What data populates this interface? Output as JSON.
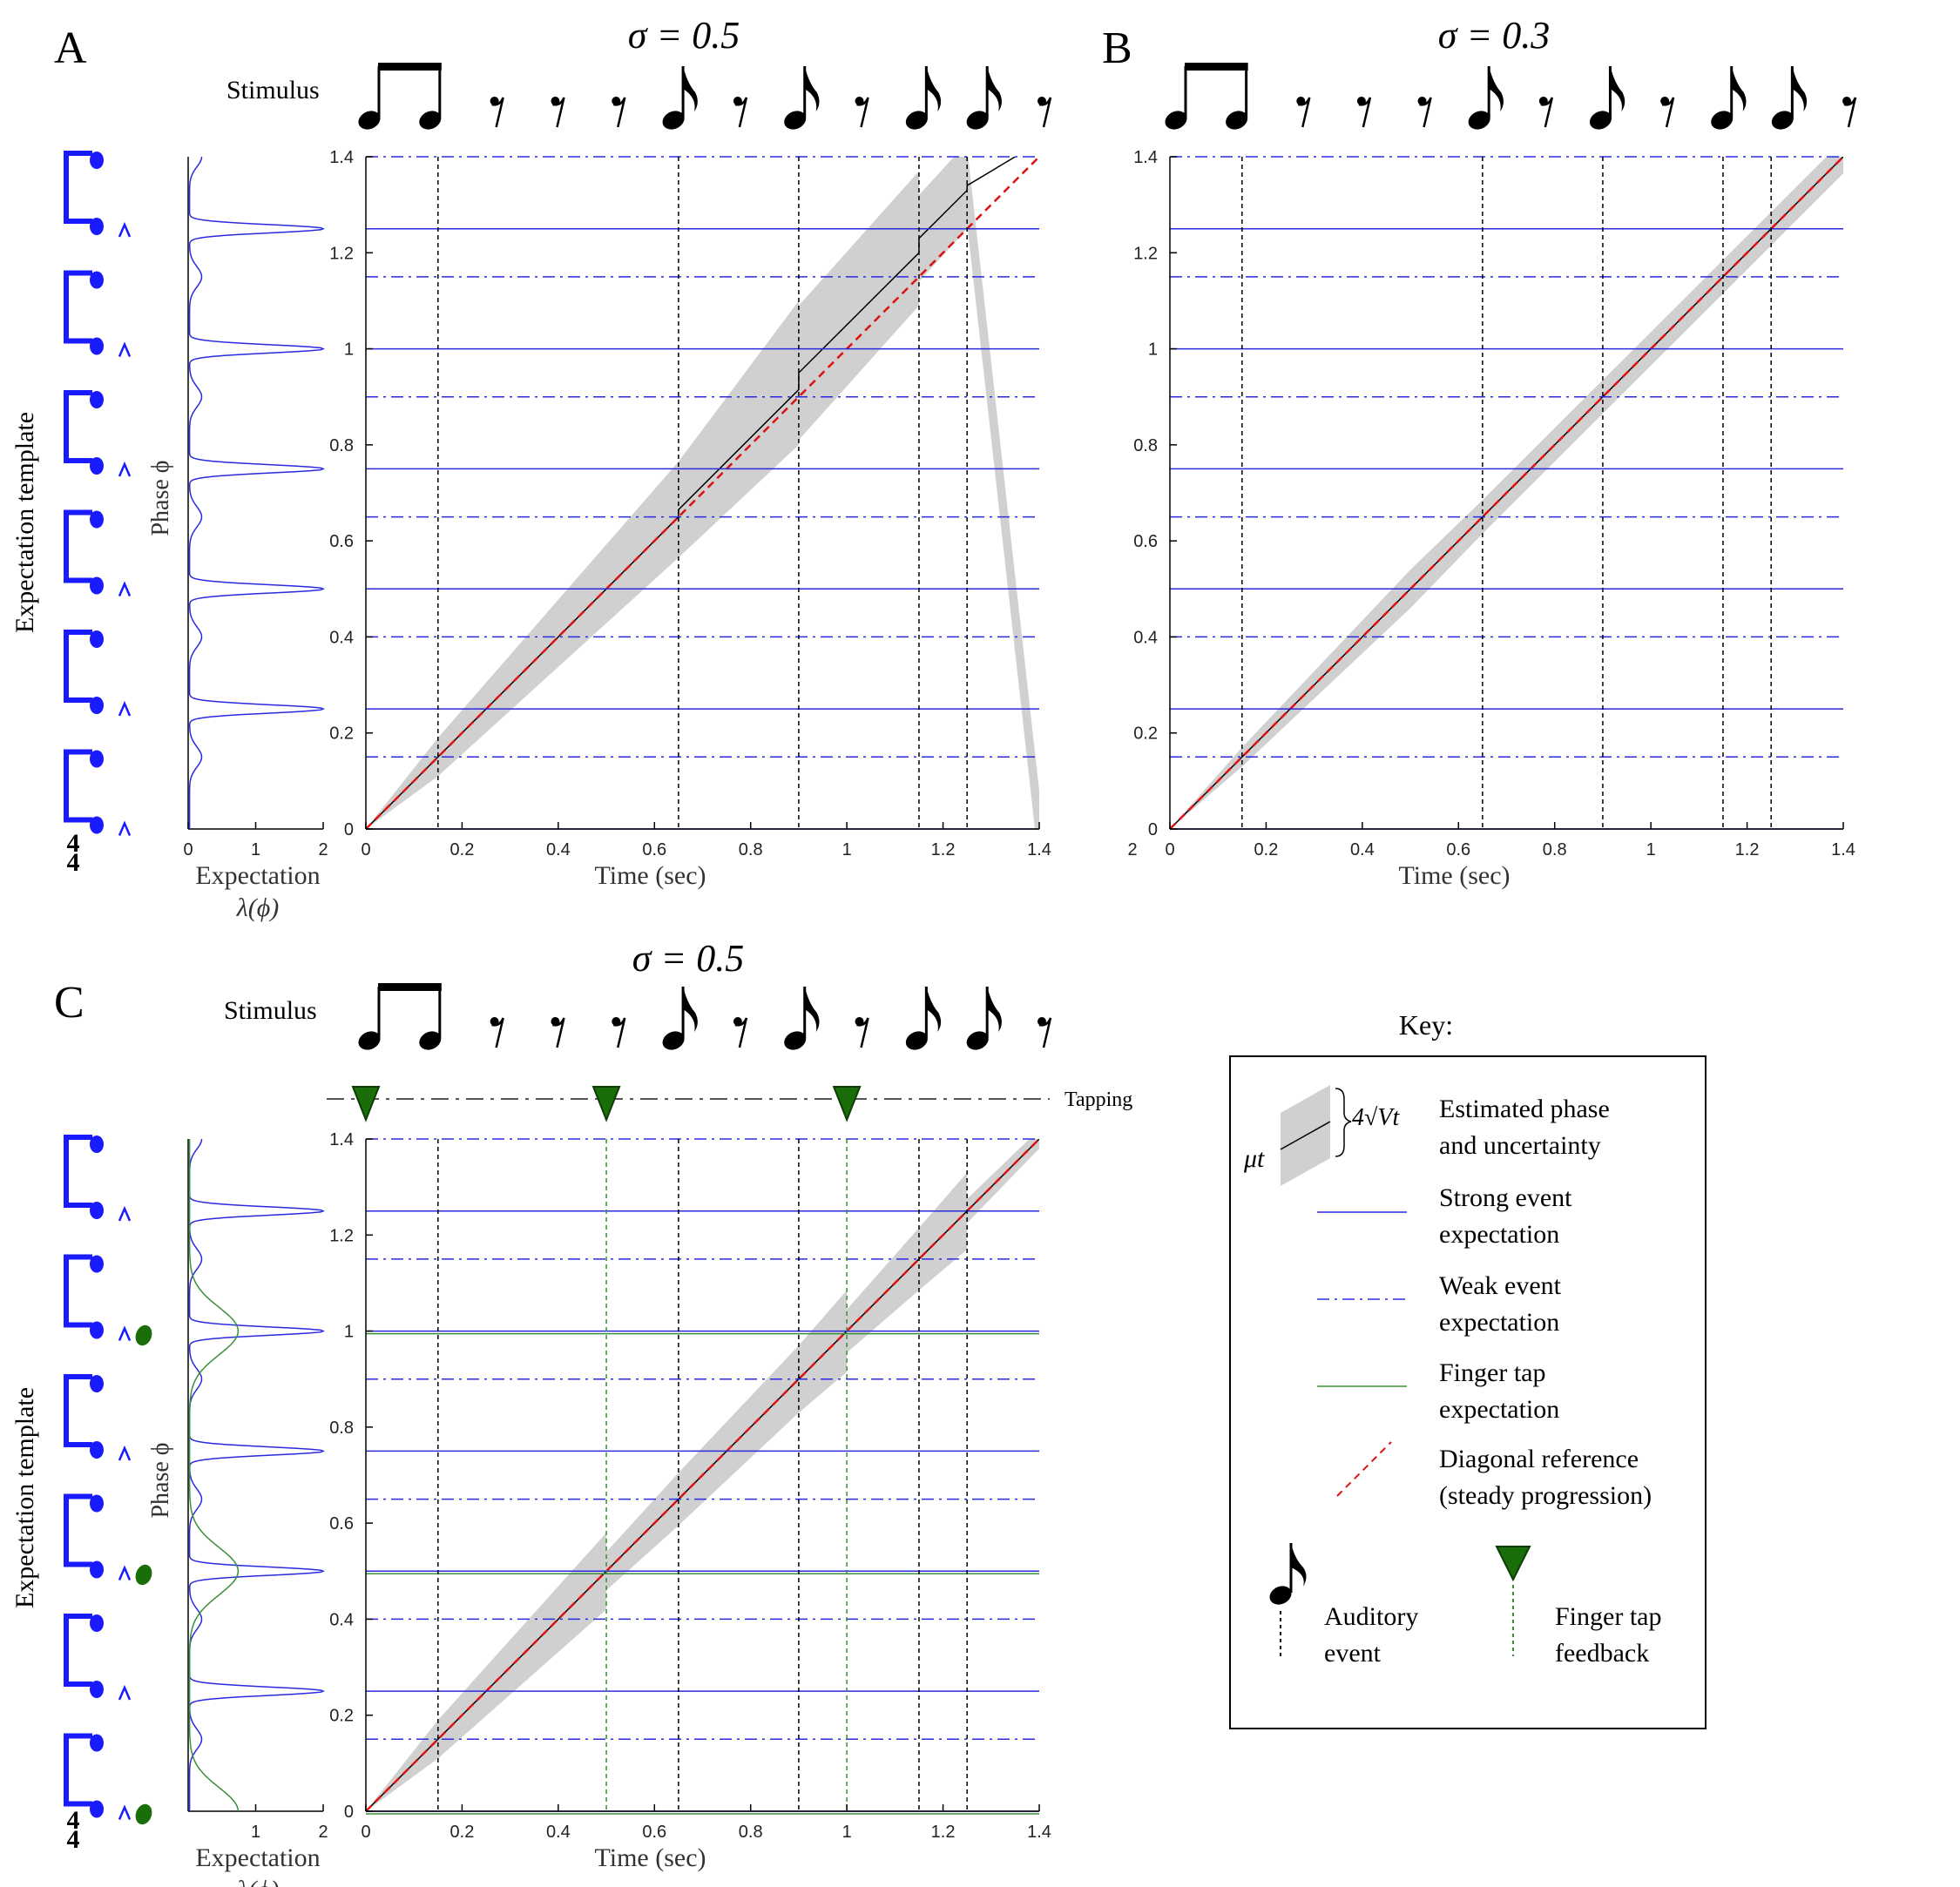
{
  "figure": {
    "panels": [
      {
        "id": "A",
        "letter": "A",
        "sigma_label": "σ = 0.5",
        "stimulus_label": "Stimulus",
        "has_template": true,
        "has_tapping": false
      },
      {
        "id": "B",
        "letter": "B",
        "sigma_label": "σ = 0.3",
        "stimulus_label": "",
        "has_template": false,
        "has_tapping": false
      },
      {
        "id": "C",
        "letter": "C",
        "sigma_label": "σ = 0.5",
        "stimulus_label": "Stimulus",
        "has_template": true,
        "has_tapping": true
      }
    ],
    "template_ylabel": "Expectation template",
    "time_signature": [
      "4",
      "4"
    ],
    "tapping_label": "Tapping"
  },
  "stimulus": {
    "symbols": [
      "beamed-pair",
      "rest",
      "rest",
      "rest",
      "eighth-note",
      "rest",
      "eighth-note",
      "rest",
      "eighth-note",
      "eighth-note",
      "rest"
    ]
  },
  "key": {
    "title": "Key:",
    "entries": [
      {
        "id": "estimated",
        "label_line1": "Estimated phase",
        "label_line2": "and uncertainty",
        "symbol_mu": "μt",
        "symbol_v": "4√Vt"
      },
      {
        "id": "strong",
        "label_line1": "Strong event",
        "label_line2": "expectation",
        "color": "#2a2ae0"
      },
      {
        "id": "weak",
        "label_line1": "Weak event",
        "label_line2": "expectation",
        "color": "#2a2ae0"
      },
      {
        "id": "tap",
        "label_line1": "Finger tap",
        "label_line2": "expectation",
        "color": "#3a8f3a"
      },
      {
        "id": "diag",
        "label_line1": "Diagonal reference",
        "label_line2": "(steady progression)",
        "color": "#e01010"
      }
    ],
    "auditory_label_line1": "Auditory",
    "auditory_label_line2": "event",
    "tap_label_line1": "Finger tap",
    "tap_label_line2": "feedback"
  },
  "colors": {
    "strong": "#2a2ae0",
    "weak": "#2a2ae0",
    "tap": "#3a8f3a",
    "diag": "#e01010",
    "band": "#d0d0d0",
    "mean": "#000000",
    "marker": "#1a6e0a",
    "expect": "#2a2ae0"
  },
  "chart_data": [
    {
      "panel": "A",
      "type": "line",
      "xlabel": "Time (sec)",
      "ylabel": "Phase ϕ",
      "xlim": [
        0,
        1.4
      ],
      "ylim": [
        0,
        1.4
      ],
      "xticks": [
        0,
        0.2,
        0.4,
        0.6,
        0.8,
        1,
        1.2,
        1.4
      ],
      "yticks": [
        0,
        0.2,
        0.4,
        0.6,
        0.8,
        1,
        1.2,
        1.4
      ],
      "strong_expectations": [
        0,
        0.25,
        0.5,
        0.75,
        1,
        1.25
      ],
      "weak_expectations": [
        0.15,
        0.4,
        0.65,
        0.9,
        1.15,
        1.4
      ],
      "auditory_events": [
        0.15,
        0.65,
        0.9,
        1.15,
        1.25
      ],
      "diagonal_reference": [
        [
          0,
          0
        ],
        [
          1.4,
          1.4
        ]
      ],
      "mean_phase": [
        [
          0,
          0
        ],
        [
          0.65,
          0.65
        ],
        [
          0.65,
          0.665
        ],
        [
          0.9,
          0.915
        ],
        [
          0.9,
          0.95
        ],
        [
          1.15,
          1.2
        ],
        [
          1.15,
          1.23
        ],
        [
          1.25,
          1.33
        ],
        [
          1.25,
          1.34
        ],
        [
          1.35,
          1.4
        ]
      ],
      "uncertainty_band_halfwidth": [
        [
          0,
          0.0
        ],
        [
          0.15,
          0.04
        ],
        [
          0.65,
          0.1
        ],
        [
          0.9,
          0.15
        ],
        [
          0.9,
          0.14
        ],
        [
          1.15,
          0.14
        ],
        [
          1.15,
          0.09
        ],
        [
          1.25,
          0.09
        ],
        [
          1.25,
          0.08
        ],
        [
          1.4,
          0.08
        ]
      ],
      "expectation_xlabel": "Expectation",
      "expectation_xlabel2": "λ(ϕ)",
      "expectation_xlim": [
        0,
        2
      ],
      "expectation_xticks": [
        0,
        1,
        2
      ]
    },
    {
      "panel": "B",
      "type": "line",
      "xlabel": "Time (sec)",
      "ylabel": "",
      "xlim": [
        0,
        1.4
      ],
      "ylim": [
        0,
        1.4
      ],
      "xticks": [
        0,
        0.2,
        0.4,
        0.6,
        0.8,
        1,
        1.2,
        1.4
      ],
      "yticks": [
        0,
        0.2,
        0.4,
        0.6,
        0.8,
        1,
        1.2,
        1.4
      ],
      "strong_expectations": [
        0,
        0.25,
        0.5,
        0.75,
        1,
        1.25
      ],
      "weak_expectations": [
        0.15,
        0.4,
        0.65,
        0.9,
        1.15,
        1.4
      ],
      "auditory_events": [
        0.15,
        0.65,
        0.9,
        1.15,
        1.25
      ],
      "diagonal_reference": [
        [
          0,
          0
        ],
        [
          1.4,
          1.4
        ]
      ],
      "mean_phase": [
        [
          0,
          0
        ],
        [
          1.4,
          1.4
        ]
      ],
      "uncertainty_band_halfwidth": [
        [
          0,
          0
        ],
        [
          0.15,
          0.02
        ],
        [
          0.5,
          0.04
        ],
        [
          0.65,
          0.035
        ],
        [
          1.4,
          0.035
        ]
      ],
      "stray_tick": "2"
    },
    {
      "panel": "C",
      "type": "line",
      "xlabel": "Time (sec)",
      "ylabel": "Phase ϕ",
      "xlim": [
        0,
        1.4
      ],
      "ylim": [
        0,
        1.4
      ],
      "xticks": [
        0,
        0.2,
        0.4,
        0.6,
        0.8,
        1,
        1.2,
        1.4
      ],
      "yticks": [
        0,
        0.2,
        0.4,
        0.6,
        0.8,
        1,
        1.2,
        1.4
      ],
      "strong_expectations": [
        0,
        0.25,
        0.5,
        0.75,
        1,
        1.25
      ],
      "weak_expectations": [
        0.15,
        0.4,
        0.65,
        0.9,
        1.15,
        1.4
      ],
      "tap_expectations": [
        0,
        0.5,
        1
      ],
      "auditory_events": [
        0.15,
        0.65,
        0.9,
        1.15,
        1.25
      ],
      "tap_events": [
        0,
        0.5,
        1
      ],
      "diagonal_reference": [
        [
          0,
          0
        ],
        [
          1.4,
          1.4
        ]
      ],
      "mean_phase": [
        [
          0,
          0
        ],
        [
          1.4,
          1.4
        ]
      ],
      "uncertainty_band_halfwidth": [
        [
          0,
          0.0
        ],
        [
          0.15,
          0.04
        ],
        [
          0.5,
          0.08
        ],
        [
          0.5,
          0.04
        ],
        [
          0.65,
          0.055
        ],
        [
          0.9,
          0.07
        ],
        [
          1,
          0.085
        ],
        [
          1,
          0.045
        ],
        [
          1.15,
          0.065
        ],
        [
          1.25,
          0.08
        ],
        [
          1.25,
          0.025
        ],
        [
          1.4,
          0.02
        ]
      ],
      "expectation_xlabel": "Expectation",
      "expectation_xlabel2": "λ(ϕ)",
      "expectation_xlim": [
        0,
        2
      ],
      "expectation_xticks": [
        1,
        2
      ]
    }
  ]
}
